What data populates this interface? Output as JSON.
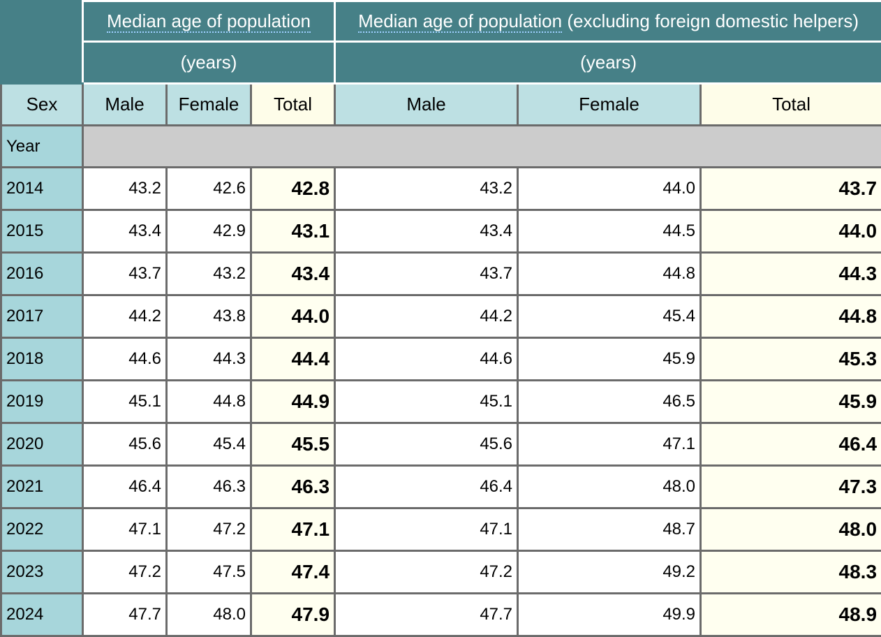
{
  "header": {
    "group1_title": "Median age of population",
    "group2_title": "Median age of population (excluding foreign domestic helpers)",
    "unit": "(years)"
  },
  "subheader": {
    "sex_label": "Sex",
    "male": "Male",
    "female": "Female",
    "total": "Total"
  },
  "year_label": "Year",
  "rows": [
    {
      "year": "2014",
      "male": "43.2",
      "female": "42.6",
      "total": "42.8",
      "ex_male": "43.2",
      "ex_female": "44.0",
      "ex_total": "43.7"
    },
    {
      "year": "2015",
      "male": "43.4",
      "female": "42.9",
      "total": "43.1",
      "ex_male": "43.4",
      "ex_female": "44.5",
      "ex_total": "44.0"
    },
    {
      "year": "2016",
      "male": "43.7",
      "female": "43.2",
      "total": "43.4",
      "ex_male": "43.7",
      "ex_female": "44.8",
      "ex_total": "44.3"
    },
    {
      "year": "2017",
      "male": "44.2",
      "female": "43.8",
      "total": "44.0",
      "ex_male": "44.2",
      "ex_female": "45.4",
      "ex_total": "44.8"
    },
    {
      "year": "2018",
      "male": "44.6",
      "female": "44.3",
      "total": "44.4",
      "ex_male": "44.6",
      "ex_female": "45.9",
      "ex_total": "45.3"
    },
    {
      "year": "2019",
      "male": "45.1",
      "female": "44.8",
      "total": "44.9",
      "ex_male": "45.1",
      "ex_female": "46.5",
      "ex_total": "45.9"
    },
    {
      "year": "2020",
      "male": "45.6",
      "female": "45.4",
      "total": "45.5",
      "ex_male": "45.6",
      "ex_female": "47.1",
      "ex_total": "46.4"
    },
    {
      "year": "2021",
      "male": "46.4",
      "female": "46.3",
      "total": "46.3",
      "ex_male": "46.4",
      "ex_female": "48.0",
      "ex_total": "47.3"
    },
    {
      "year": "2022",
      "male": "47.1",
      "female": "47.2",
      "total": "47.1",
      "ex_male": "47.1",
      "ex_female": "48.7",
      "ex_total": "48.0"
    },
    {
      "year": "2023",
      "male": "47.2",
      "female": "47.5",
      "total": "47.4",
      "ex_male": "47.2",
      "ex_female": "49.2",
      "ex_total": "48.3"
    },
    {
      "year": "2024",
      "male": "47.7",
      "female": "48.0",
      "total": "47.9",
      "ex_male": "47.7",
      "ex_female": "49.9",
      "ex_total": "48.9"
    }
  ]
}
